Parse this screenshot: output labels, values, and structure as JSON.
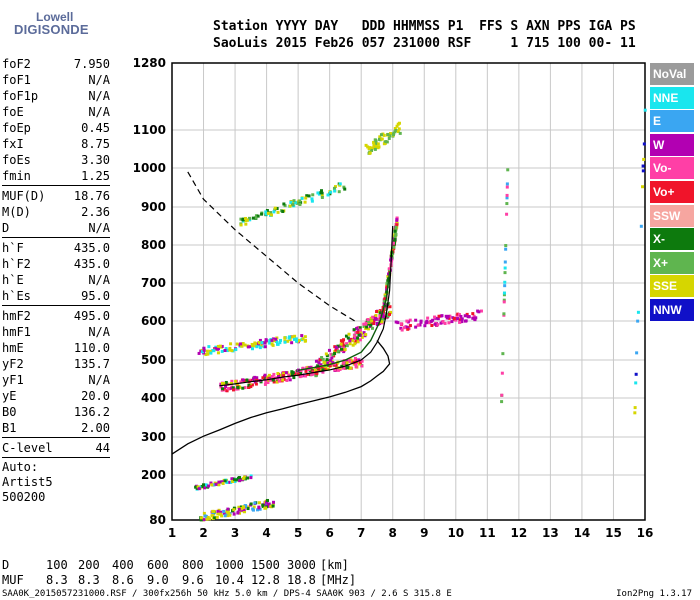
{
  "logo": {
    "line1": "Lowell",
    "line2": "DIGISONDE"
  },
  "header": {
    "line1": "Station YYYY DAY   DDD HHMMSS P1  FFS S AXN PPS IGA PS",
    "line2": "SaoLuis 2015 Feb26 057 231000 RSF     1 715 100 00- 11"
  },
  "params": [
    [
      {
        "k": "foF2",
        "v": "7.950"
      },
      {
        "k": "foF1",
        "v": "N/A"
      },
      {
        "k": "foF1p",
        "v": "N/A"
      },
      {
        "k": "foE",
        "v": "N/A"
      },
      {
        "k": "foEp",
        "v": "0.45"
      },
      {
        "k": "fxI",
        "v": "8.75"
      },
      {
        "k": "foEs",
        "v": "3.30"
      },
      {
        "k": "fmin",
        "v": "1.25"
      }
    ],
    [
      {
        "k": "MUF(D)",
        "v": "18.76"
      },
      {
        "k": "M(D)",
        "v": "2.36"
      },
      {
        "k": "D",
        "v": "N/A"
      }
    ],
    [
      {
        "k": "h`F",
        "v": "435.0"
      },
      {
        "k": "h`F2",
        "v": "435.0"
      },
      {
        "k": "h`E",
        "v": "N/A"
      },
      {
        "k": "h`Es",
        "v": "95.0"
      }
    ],
    [
      {
        "k": "hmF2",
        "v": "495.0"
      },
      {
        "k": "hmF1",
        "v": "N/A"
      },
      {
        "k": "hmE",
        "v": "110.0"
      },
      {
        "k": "yF2",
        "v": "135.7"
      },
      {
        "k": "yF1",
        "v": "N/A"
      },
      {
        "k": "yE",
        "v": "20.0"
      },
      {
        "k": "B0",
        "v": "136.2"
      },
      {
        "k": "B1",
        "v": "2.00"
      }
    ],
    [
      {
        "k": "C-level",
        "v": "44"
      }
    ]
  ],
  "auto": {
    "line1": "Auto:",
    "line2": "Artist5",
    "line3": "500200"
  },
  "legend": [
    {
      "label": "NoVal",
      "color": "#9b9b9b"
    },
    {
      "label": "NNE",
      "color": "#19e6ee"
    },
    {
      "label": "E",
      "color": "#3aa6f2"
    },
    {
      "label": "W",
      "color": "#b200b2"
    },
    {
      "label": "Vo-",
      "color": "#ff3fa6"
    },
    {
      "label": "Vo+",
      "color": "#f0142a"
    },
    {
      "label": "SSW",
      "color": "#f6a6a0"
    },
    {
      "label": "X-",
      "color": "#0d7a0d"
    },
    {
      "label": "X+",
      "color": "#5fb54f"
    },
    {
      "label": "SSE",
      "color": "#d6d600"
    },
    {
      "label": "NNW",
      "color": "#1010c8"
    }
  ],
  "footer": {
    "d_label": "D",
    "d_values": [
      "100",
      "200",
      "400",
      "600",
      "800",
      "1000",
      "1500",
      "3000",
      "[km]"
    ],
    "muf_label": "MUF",
    "muf_values": [
      "8.3",
      "8.3",
      "8.6",
      "9.0",
      "9.6",
      "10.4",
      "12.8",
      "18.8",
      "[MHz]"
    ],
    "file_line": "SAA0K_2015057231000.RSF / 300fx256h 50 kHz 5.0 km / DPS-4 SAA0K 903 / 2.6 S 315.8 E",
    "version": "Ion2Png 1.3.17"
  },
  "chart_data": {
    "type": "scatter",
    "x_ticks": [
      "1",
      "2",
      "3",
      "4",
      "5",
      "6",
      "7",
      "8",
      "9",
      "10",
      "11",
      "12",
      "13",
      "14",
      "15",
      "16"
    ],
    "y_ticks": [
      "80",
      "200",
      "300",
      "400",
      "500",
      "600",
      "700",
      "800",
      "900",
      "1000",
      "1100",
      "1280"
    ],
    "xlim": [
      1,
      16
    ],
    "ylim": [
      80,
      1280
    ],
    "grid": true,
    "legend_position": "right",
    "profile_curve": [
      [
        1.0,
        255
      ],
      [
        1.5,
        282
      ],
      [
        2.0,
        302
      ],
      [
        2.5,
        318
      ],
      [
        3.0,
        335
      ],
      [
        3.5,
        350
      ],
      [
        4.0,
        362
      ],
      [
        4.5,
        372
      ],
      [
        5.0,
        383
      ],
      [
        5.5,
        393
      ],
      [
        6.0,
        403
      ],
      [
        6.5,
        415
      ],
      [
        7.0,
        430
      ],
      [
        7.3,
        445
      ],
      [
        7.5,
        458
      ],
      [
        7.7,
        470
      ],
      [
        7.9,
        490
      ],
      [
        7.85,
        510
      ],
      [
        7.7,
        530
      ],
      [
        7.5,
        550
      ]
    ],
    "o_trace": [
      [
        2.5,
        432
      ],
      [
        3.0,
        437
      ],
      [
        3.5,
        443
      ],
      [
        4.0,
        448
      ],
      [
        4.5,
        455
      ],
      [
        5.0,
        460
      ],
      [
        5.5,
        467
      ],
      [
        6.0,
        474
      ],
      [
        6.5,
        484
      ],
      [
        7.0,
        500
      ],
      [
        7.3,
        520
      ],
      [
        7.5,
        545
      ],
      [
        7.7,
        580
      ],
      [
        7.8,
        620
      ],
      [
        7.9,
        680
      ],
      [
        7.95,
        760
      ],
      [
        8.0,
        850
      ]
    ],
    "x_trace": [
      [
        5.0,
        473
      ],
      [
        5.5,
        480
      ],
      [
        6.0,
        488
      ],
      [
        6.5,
        500
      ],
      [
        7.0,
        520
      ],
      [
        7.3,
        550
      ],
      [
        7.6,
        600
      ],
      [
        7.8,
        660
      ],
      [
        7.9,
        730
      ]
    ],
    "dashed_curve": [
      [
        1.5,
        990
      ],
      [
        2.0,
        920
      ],
      [
        3.0,
        840
      ],
      [
        4.0,
        770
      ],
      [
        5.0,
        700
      ],
      [
        6.0,
        640
      ],
      [
        6.9,
        595
      ]
    ]
  }
}
